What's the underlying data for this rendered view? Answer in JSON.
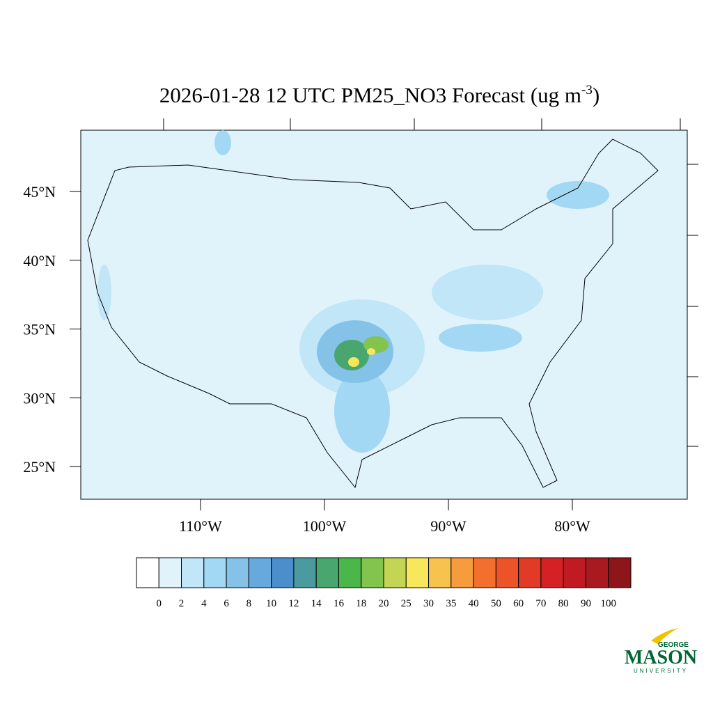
{
  "map": {
    "title": {
      "text": "2026-01-28 12 UTC PM25_NO3 Forecast (ug m",
      "superscript": "-3",
      "suffix": ")"
    },
    "lat_ticks": [
      {
        "value": 45,
        "label": "45°N"
      },
      {
        "value": 40,
        "label": "40°N"
      },
      {
        "value": 35,
        "label": "35°N"
      },
      {
        "value": 30,
        "label": "30°N"
      },
      {
        "value": 25,
        "label": "25°N"
      }
    ],
    "lon_ticks": [
      {
        "value": -110,
        "label": "110°W"
      },
      {
        "value": -100,
        "label": "100°W"
      },
      {
        "value": -90,
        "label": "90°W"
      },
      {
        "value": -80,
        "label": "80°W"
      }
    ],
    "colorbar": {
      "levels": [
        0,
        2,
        4,
        6,
        8,
        10,
        12,
        14,
        16,
        18,
        20,
        25,
        30,
        35,
        40,
        50,
        60,
        70,
        80,
        90,
        100
      ],
      "colors": [
        "#ffffff",
        "#e0f3fb",
        "#c0e6f7",
        "#a2d8f3",
        "#84c2e7",
        "#67a9dc",
        "#4a8ecc",
        "#4a9aa0",
        "#48a66e",
        "#4bb64a",
        "#82c44d",
        "#c4d555",
        "#f6e85a",
        "#f7c24d",
        "#f69b3e",
        "#f36f2e",
        "#ec5329",
        "#e13a26",
        "#d52126",
        "#c01b22",
        "#a81a1f",
        "#8e161b"
      ]
    },
    "logo": {
      "top": "GEORGE",
      "main": "MASON",
      "bottom": "UNIVERSITY"
    }
  }
}
